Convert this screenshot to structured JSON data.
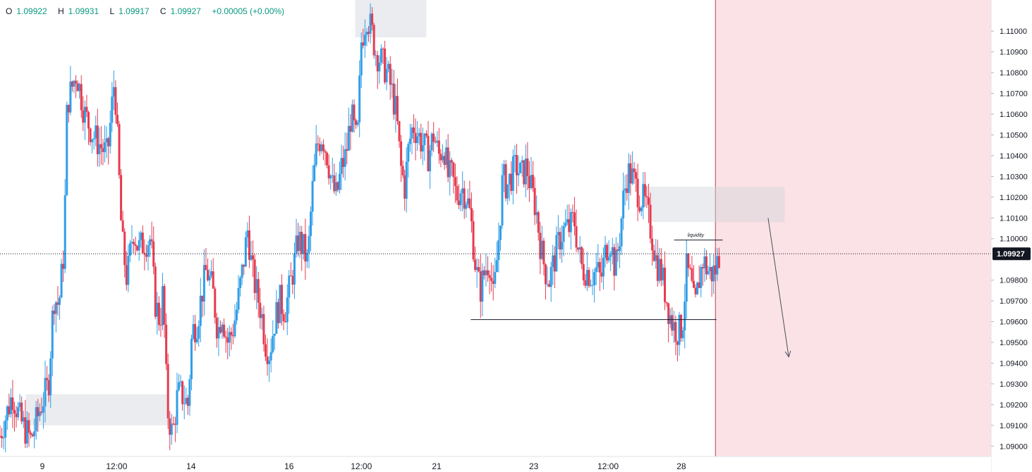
{
  "ohlc": {
    "open_key": "O",
    "open": "1.09922",
    "high_key": "H",
    "high": "1.09931",
    "low_key": "L",
    "low": "1.09917",
    "close_key": "C",
    "close": "1.09927",
    "change": "+0.00005 (+0.00%)"
  },
  "chart_data": {
    "type": "candlestick",
    "symbol_quote": "1.09927",
    "ylim": [
      1.0895,
      1.1115
    ],
    "y_ticks": [
      "1.09000",
      "1.09100",
      "1.09200",
      "1.09300",
      "1.09400",
      "1.09500",
      "1.09600",
      "1.09700",
      "1.09800",
      "1.09900",
      "1.10000",
      "1.10100",
      "1.10200",
      "1.10300",
      "1.10400",
      "1.10500",
      "1.10600",
      "1.10700",
      "1.10800",
      "1.10900",
      "1.11000"
    ],
    "x_ticks": [
      {
        "label": "9",
        "t": 0.041
      },
      {
        "label": "12:00",
        "t": 0.113
      },
      {
        "label": "14",
        "t": 0.185
      },
      {
        "label": "16",
        "t": 0.28
      },
      {
        "label": "12:00",
        "t": 0.35
      },
      {
        "label": "21",
        "t": 0.423
      },
      {
        "label": "23",
        "t": 0.517
      },
      {
        "label": "12:00",
        "t": 0.589
      },
      {
        "label": "28",
        "t": 0.66
      }
    ],
    "x_range_end": 0.697,
    "current_price": 1.09927,
    "path_points": [
      [
        0.0,
        1.0905
      ],
      [
        0.012,
        1.0925
      ],
      [
        0.02,
        1.0912
      ],
      [
        0.03,
        1.0903
      ],
      [
        0.04,
        1.092
      ],
      [
        0.047,
        1.093
      ],
      [
        0.052,
        1.0972
      ],
      [
        0.057,
        1.0968
      ],
      [
        0.062,
        1.0995
      ],
      [
        0.065,
        1.1065
      ],
      [
        0.071,
        1.1075
      ],
      [
        0.074,
        1.108
      ],
      [
        0.082,
        1.106
      ],
      [
        0.09,
        1.105
      ],
      [
        0.097,
        1.1045
      ],
      [
        0.104,
        1.104
      ],
      [
        0.111,
        1.1078
      ],
      [
        0.118,
        1.1
      ],
      [
        0.123,
        1.098
      ],
      [
        0.129,
        1.1005
      ],
      [
        0.134,
        1.0995
      ],
      [
        0.139,
        1.0998
      ],
      [
        0.146,
        1.1
      ],
      [
        0.15,
        1.097
      ],
      [
        0.155,
        1.096
      ],
      [
        0.158,
        1.0975
      ],
      [
        0.162,
        1.0918
      ],
      [
        0.167,
        1.0905
      ],
      [
        0.172,
        1.0925
      ],
      [
        0.176,
        1.0925
      ],
      [
        0.182,
        1.092
      ],
      [
        0.186,
        1.0955
      ],
      [
        0.191,
        1.096
      ],
      [
        0.196,
        1.0975
      ],
      [
        0.2,
        1.0985
      ],
      [
        0.206,
        1.0975
      ],
      [
        0.211,
        1.0955
      ],
      [
        0.215,
        1.0965
      ],
      [
        0.22,
        1.095
      ],
      [
        0.225,
        1.0955
      ],
      [
        0.229,
        1.0965
      ],
      [
        0.235,
        1.0985
      ],
      [
        0.24,
        1.1005
      ],
      [
        0.244,
        1.0985
      ],
      [
        0.248,
        1.0975
      ],
      [
        0.253,
        1.0965
      ],
      [
        0.257,
        1.095
      ],
      [
        0.261,
        1.0945
      ],
      [
        0.266,
        1.096
      ],
      [
        0.271,
        1.097
      ],
      [
        0.276,
        1.0965
      ],
      [
        0.28,
        1.0975
      ],
      [
        0.284,
        1.0985
      ],
      [
        0.289,
        1.1
      ],
      [
        0.294,
        1.0995
      ],
      [
        0.298,
        1.0988
      ],
      [
        0.302,
        1.102
      ],
      [
        0.307,
        1.1045
      ],
      [
        0.312,
        1.105
      ],
      [
        0.317,
        1.104
      ],
      [
        0.322,
        1.1025
      ],
      [
        0.326,
        1.102
      ],
      [
        0.331,
        1.1035
      ],
      [
        0.335,
        1.104
      ],
      [
        0.34,
        1.106
      ],
      [
        0.346,
        1.1045
      ],
      [
        0.35,
        1.1095
      ],
      [
        0.355,
        1.1108
      ],
      [
        0.36,
        1.11
      ],
      [
        0.364,
        1.109
      ],
      [
        0.37,
        1.1085
      ],
      [
        0.375,
        1.108
      ],
      [
        0.38,
        1.107
      ],
      [
        0.384,
        1.106
      ],
      [
        0.388,
        1.1035
      ],
      [
        0.392,
        1.1025
      ],
      [
        0.396,
        1.1045
      ],
      [
        0.4,
        1.1055
      ],
      [
        0.405,
        1.105
      ],
      [
        0.41,
        1.1045
      ],
      [
        0.415,
        1.104
      ],
      [
        0.42,
        1.105
      ],
      [
        0.425,
        1.104
      ],
      [
        0.43,
        1.1045
      ],
      [
        0.434,
        1.103
      ],
      [
        0.438,
        1.103
      ],
      [
        0.442,
        1.102
      ],
      [
        0.447,
        1.1025
      ],
      [
        0.452,
        1.102
      ],
      [
        0.456,
        1.101
      ],
      [
        0.461,
        1.0985
      ],
      [
        0.465,
        1.0975
      ],
      [
        0.47,
        1.0985
      ],
      [
        0.474,
        1.099
      ],
      [
        0.478,
        1.097
      ],
      [
        0.483,
        1.1
      ],
      [
        0.487,
        1.103
      ],
      [
        0.491,
        1.1025
      ],
      [
        0.495,
        1.103
      ],
      [
        0.5,
        1.1035
      ],
      [
        0.505,
        1.103
      ],
      [
        0.51,
        1.1035
      ],
      [
        0.514,
        1.1025
      ],
      [
        0.519,
        1.1015
      ],
      [
        0.524,
        1.0995
      ],
      [
        0.528,
        1.0985
      ],
      [
        0.532,
        1.098
      ],
      [
        0.537,
        1.099
      ],
      [
        0.542,
        1.1
      ],
      [
        0.547,
        1.1005
      ],
      [
        0.552,
        1.1005
      ],
      [
        0.556,
        1.101
      ],
      [
        0.56,
        1.0995
      ],
      [
        0.564,
        1.0985
      ],
      [
        0.568,
        1.0985
      ],
      [
        0.573,
        1.0982
      ],
      [
        0.578,
        1.0985
      ],
      [
        0.582,
        1.098
      ],
      [
        0.587,
        1.0995
      ],
      [
        0.591,
        1.1
      ],
      [
        0.596,
        1.0985
      ],
      [
        0.6,
        1.1
      ],
      [
        0.604,
        1.102
      ],
      [
        0.608,
        1.1032
      ],
      [
        0.612,
        1.103
      ],
      [
        0.616,
        1.1025
      ],
      [
        0.62,
        1.102
      ],
      [
        0.624,
        1.1018
      ],
      [
        0.628,
        1.101
      ],
      [
        0.632,
        1.1
      ],
      [
        0.636,
        1.0988
      ],
      [
        0.64,
        1.0985
      ],
      [
        0.644,
        1.0975
      ],
      [
        0.648,
        1.0965
      ],
      [
        0.652,
        1.0958
      ],
      [
        0.657,
        1.0955
      ],
      [
        0.661,
        1.0958
      ],
      [
        0.665,
        1.0985
      ],
      [
        0.669,
        1.098
      ],
      [
        0.673,
        1.0965
      ],
      [
        0.677,
        1.098
      ],
      [
        0.681,
        1.099
      ],
      [
        0.685,
        1.0985
      ],
      [
        0.689,
        1.0983
      ],
      [
        0.693,
        1.0985
      ],
      [
        0.697,
        1.0993
      ]
    ],
    "zones": [
      {
        "t0": 0.025,
        "t1": 0.163,
        "p0": 1.091,
        "p1": 1.0925,
        "color": "#d1d4dc"
      },
      {
        "t0": 0.344,
        "t1": 0.413,
        "p0": 1.1097,
        "p1": 1.1115,
        "color": "#d1d4dc"
      },
      {
        "t0": 0.628,
        "t1": 0.76,
        "p0": 1.1008,
        "p1": 1.1025,
        "color": "#d1d4dc"
      }
    ],
    "hlines": [
      {
        "t0": 0.456,
        "t1": 0.694,
        "p": 1.0961,
        "color": "#131722"
      },
      {
        "t0": 0.653,
        "t1": 0.7,
        "p": 1.09993,
        "color": "#131722"
      }
    ],
    "annotations": [
      {
        "text": "liquidity",
        "t": 0.674,
        "p": 1.1001
      }
    ],
    "shaded_region": {
      "t0": 0.693,
      "t1": 0.96,
      "color": "#fbe2e6",
      "line_color": "#b2434b"
    },
    "arrow": {
      "t0": 0.744,
      "p0": 1.101,
      "t1": 0.764,
      "p1": 1.0943
    }
  }
}
